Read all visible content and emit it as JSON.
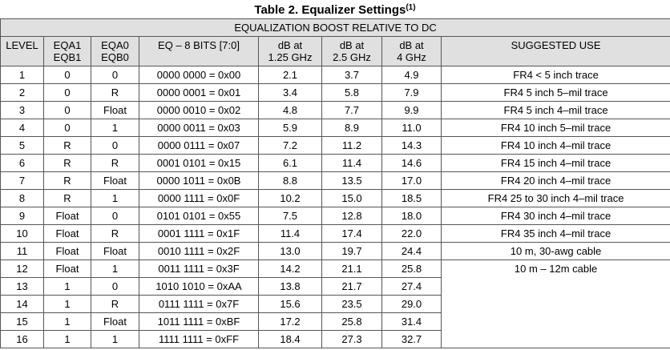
{
  "title": "Table 2. Equalizer Settings",
  "title_note": "(1)",
  "table": {
    "group_header": "EQUALIZATION BOOST RELATIVE TO DC",
    "headers": [
      [
        "LEVEL"
      ],
      [
        "EQA1",
        "EQB1"
      ],
      [
        "EQA0",
        "EQB0"
      ],
      [
        "EQ – 8 BITS [7:0]"
      ],
      [
        "dB at",
        "1.25 GHz"
      ],
      [
        "dB at",
        "2.5 GHz"
      ],
      [
        "dB at",
        "4 GHz"
      ],
      [
        "SUGGESTED USE"
      ]
    ],
    "rows": [
      [
        "1",
        "0",
        "0",
        "0000 0000 = 0x00",
        "2.1",
        "3.7",
        "4.9",
        "FR4 < 5 inch trace"
      ],
      [
        "2",
        "0",
        "R",
        "0000 0001 = 0x01",
        "3.4",
        "5.8",
        "7.9",
        "FR4 5 inch 5–mil trace"
      ],
      [
        "3",
        "0",
        "Float",
        "0000 0010 = 0x02",
        "4.8",
        "7.7",
        "9.9",
        "FR4 5 inch 4–mil trace"
      ],
      [
        "4",
        "0",
        "1",
        "0000 0011 = 0x03",
        "5.9",
        "8.9",
        "11.0",
        "FR4 10 inch 5–mil trace"
      ],
      [
        "5",
        "R",
        "0",
        "0000 0111 = 0x07",
        "7.2",
        "11.2",
        "14.3",
        "FR4 10 inch 4–mil trace"
      ],
      [
        "6",
        "R",
        "R",
        "0001 0101 = 0x15",
        "6.1",
        "11.4",
        "14.6",
        "FR4 15 inch 4–mil trace"
      ],
      [
        "7",
        "R",
        "Float",
        "0000 1011 = 0x0B",
        "8.8",
        "13.5",
        "17.0",
        "FR4 20 inch 4–mil trace"
      ],
      [
        "8",
        "R",
        "1",
        "0000 1111 = 0x0F",
        "10.2",
        "15.0",
        "18.5",
        "FR4 25 to 30 inch 4–mil trace"
      ],
      [
        "9",
        "Float",
        "0",
        "0101 0101 = 0x55",
        "7.5",
        "12.8",
        "18.0",
        "FR4 30 inch 4–mil trace"
      ],
      [
        "10",
        "Float",
        "R",
        "0001 1111 = 0x1F",
        "11.4",
        "17.4",
        "22.0",
        "FR4 35 inch 4–mil trace"
      ],
      [
        "11",
        "Float",
        "Float",
        "0010 1111 = 0x2F",
        "13.0",
        "19.7",
        "24.4",
        "10 m, 30-awg cable"
      ],
      [
        "12",
        "Float",
        "1",
        "0011 1111 = 0x3F",
        "14.2",
        "21.1",
        "25.8",
        "10 m – 12m cable"
      ],
      [
        "13",
        "1",
        "0",
        "1010 1010 = 0xAA",
        "13.8",
        "21.7",
        "27.4"
      ],
      [
        "14",
        "1",
        "R",
        "0111 1111 = 0x7F",
        "15.6",
        "23.5",
        "29.0"
      ],
      [
        "15",
        "1",
        "Float",
        "1011 1111 = 0xBF",
        "17.2",
        "25.8",
        "31.4"
      ],
      [
        "16",
        "1",
        "1",
        "1111 1111 = 0xFF",
        "18.4",
        "27.3",
        "32.7"
      ]
    ]
  }
}
